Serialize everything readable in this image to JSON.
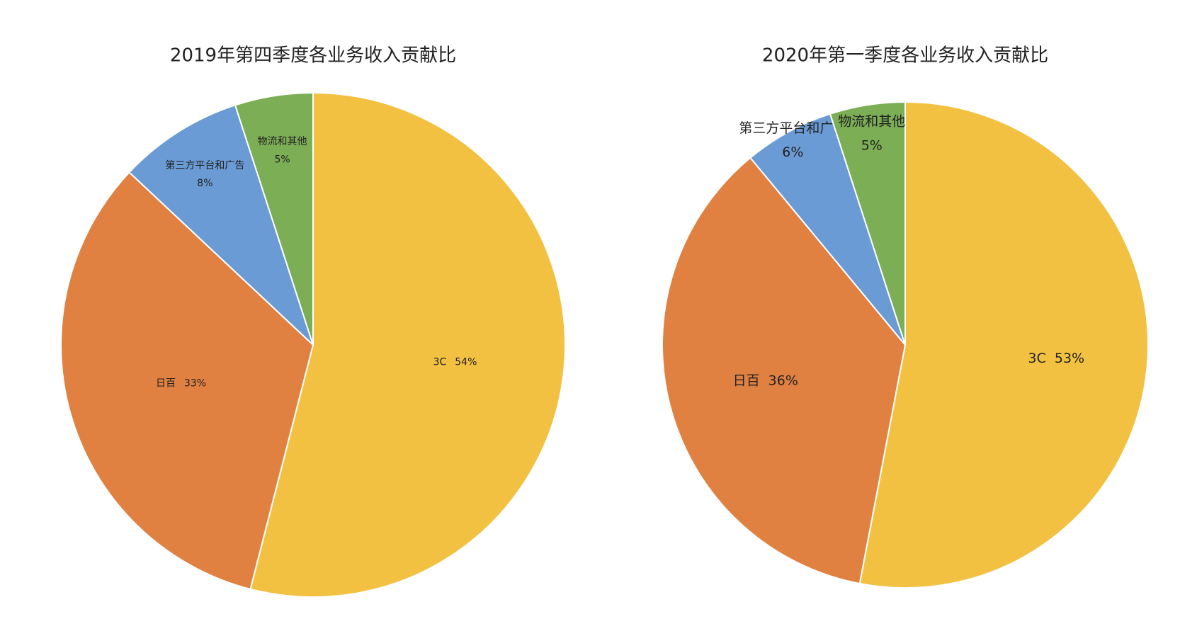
{
  "chart_data": [
    {
      "type": "pie",
      "title": "2019年第四季度各业务收入贡献比",
      "categories": [
        "3C",
        "日百",
        "第三方平台和广告",
        "物流和其他"
      ],
      "values": [
        54,
        33,
        8,
        5
      ],
      "value_labels": [
        "54%",
        "33%",
        "8%",
        "5%"
      ],
      "colors": [
        "#f3c142",
        "#e08142",
        "#6a9bd4",
        "#7bae55"
      ]
    },
    {
      "type": "pie",
      "title": "2020年第一季度各业务收入贡献比",
      "categories": [
        "3C",
        "日百",
        "第三方平台和广告",
        "物流和其他"
      ],
      "values": [
        53,
        36,
        6,
        5
      ],
      "value_labels": [
        "53%",
        "36%",
        "6%",
        "5%"
      ],
      "colors": [
        "#f3c142",
        "#e08142",
        "#6a9bd4",
        "#7bae55"
      ]
    }
  ]
}
